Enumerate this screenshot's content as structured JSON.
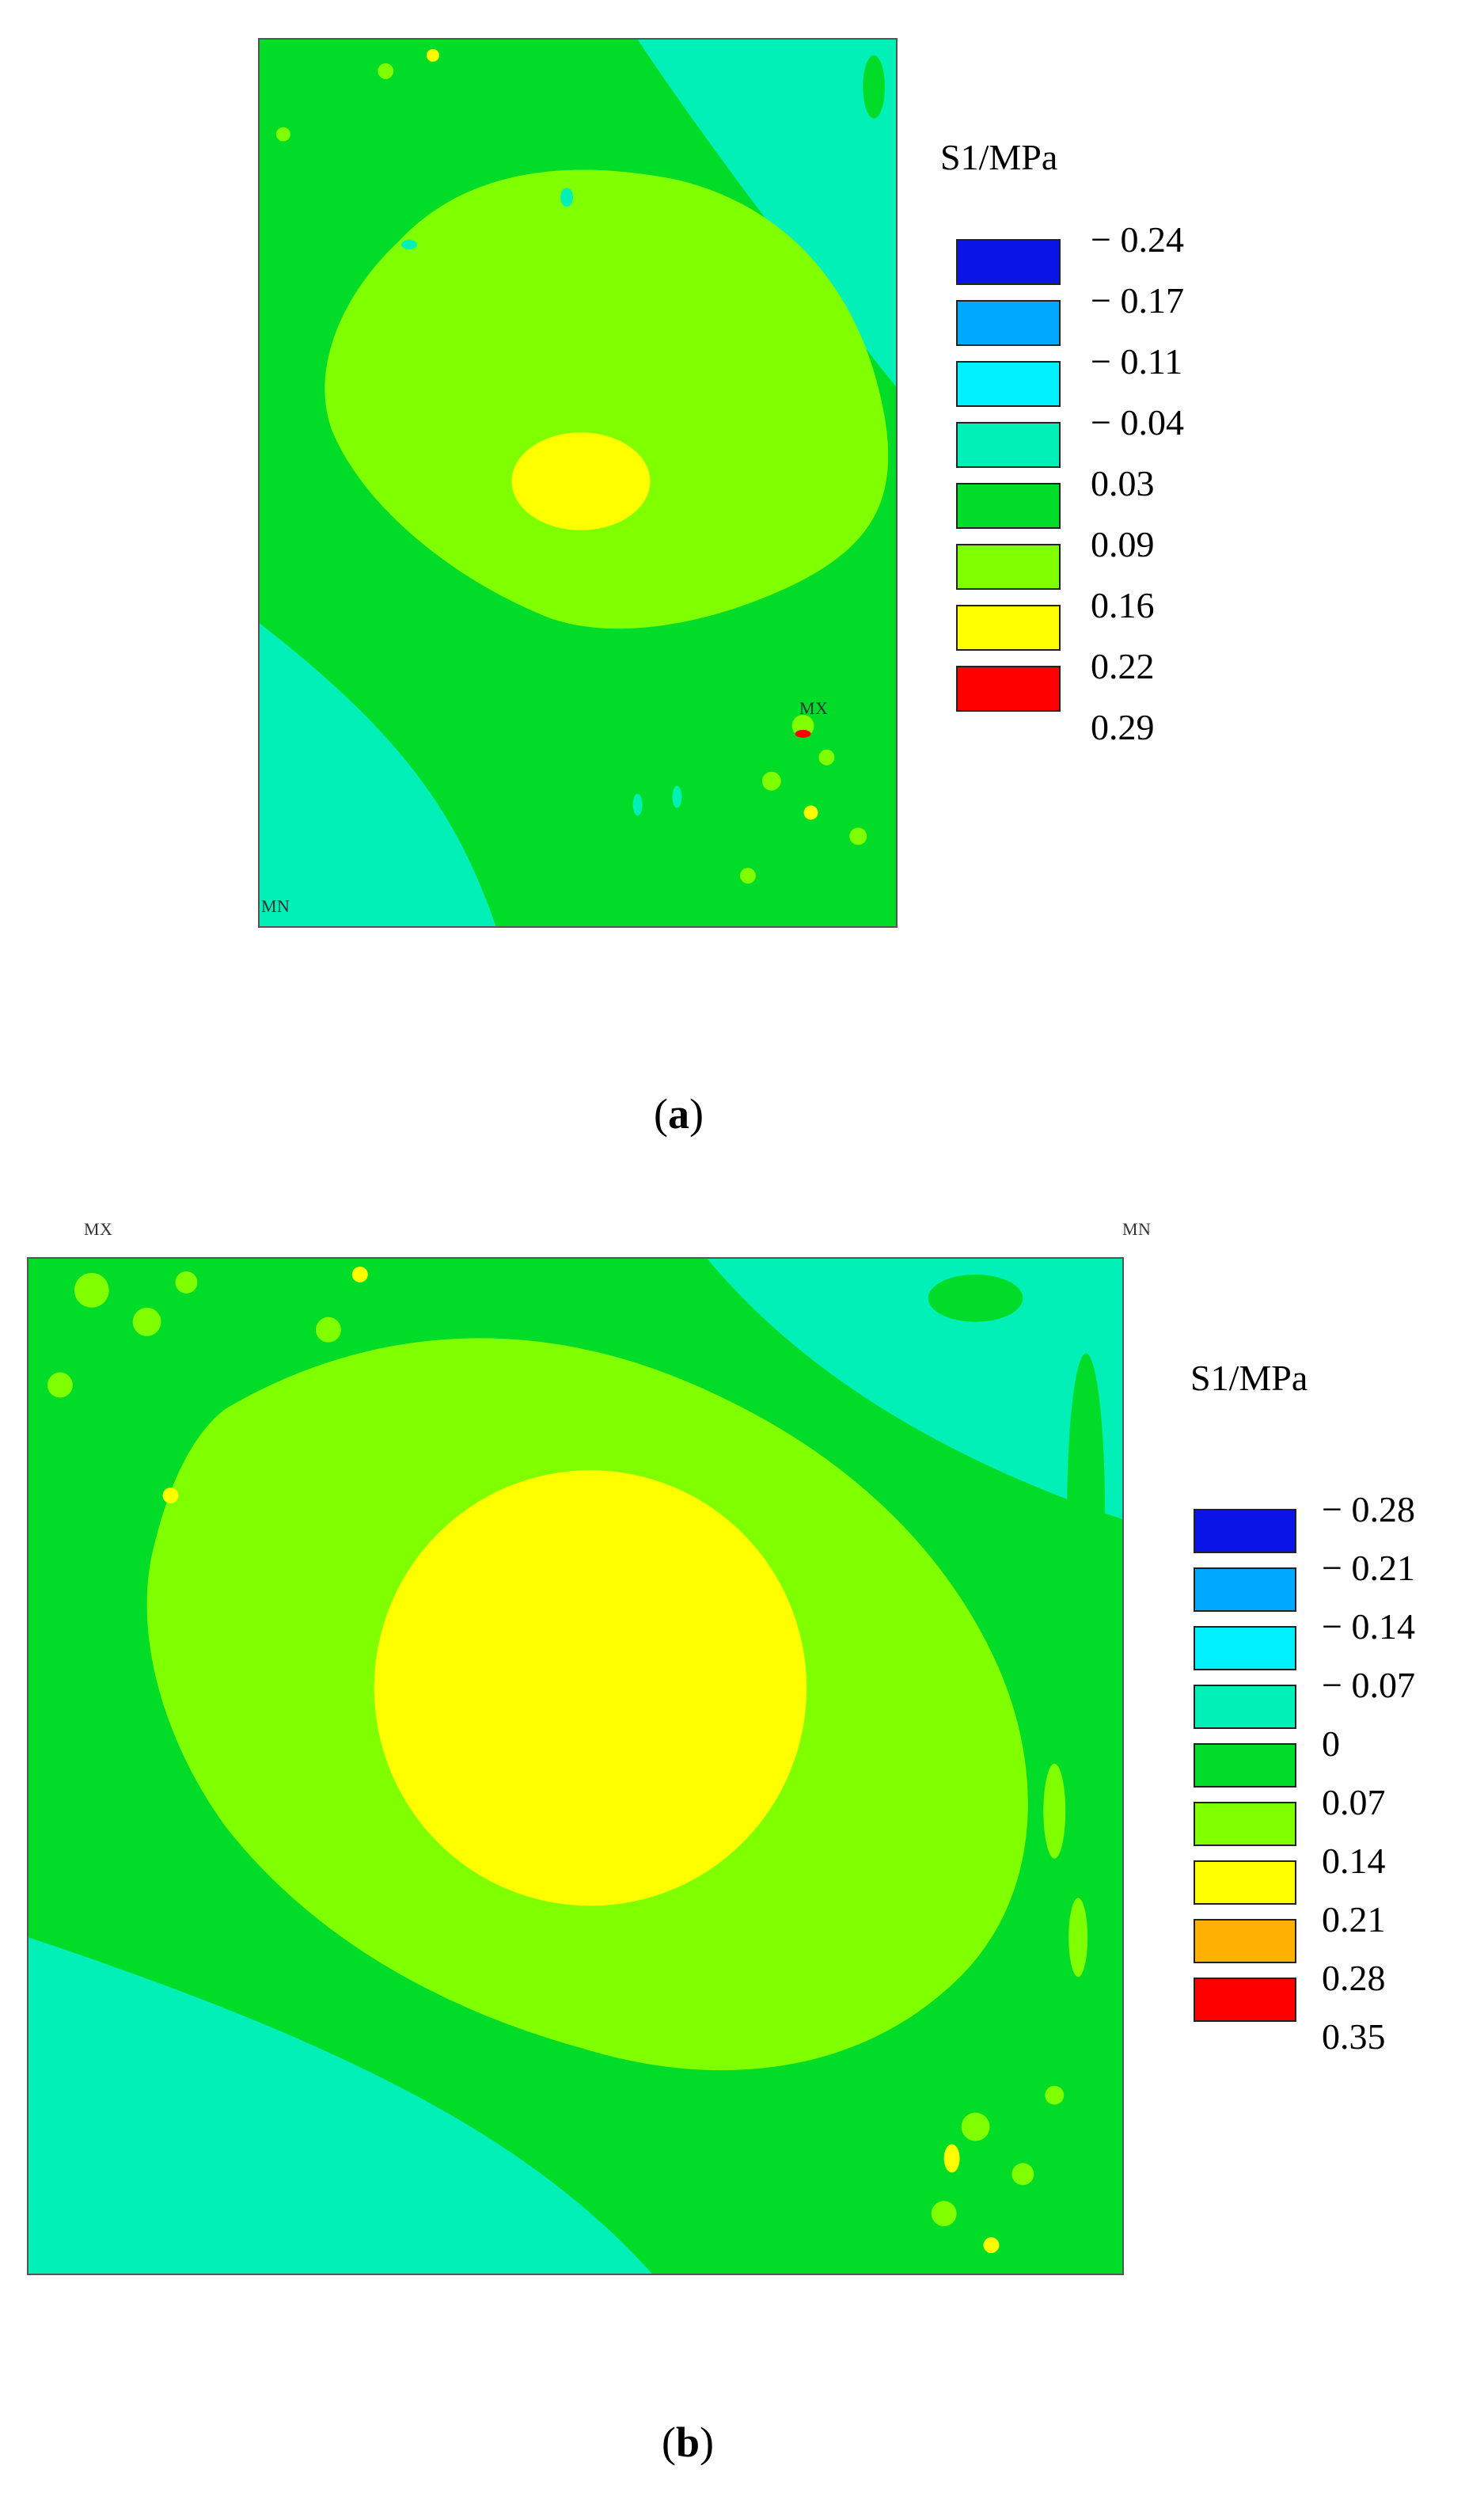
{
  "panel_a": {
    "marker_max": "MX",
    "marker_min": "MN",
    "legend": {
      "title": "S1/MPa",
      "values": [
        "− 0.24",
        "− 0.17",
        "− 0.11",
        "− 0.04",
        "0.03",
        "0.09",
        "0.16",
        "0.22",
        "0.29"
      ],
      "colors": [
        "#0a14e6",
        "#00a8ff",
        "#00f0ff",
        "#00f0b8",
        "#00dc28",
        "#80ff00",
        "#ffff00",
        "#ff0000"
      ]
    },
    "caption_open": "(",
    "caption_letter": "a",
    "caption_close": ")"
  },
  "panel_b": {
    "marker_max": "MX",
    "marker_min": "MN",
    "legend": {
      "title": "S1/MPa",
      "values": [
        "− 0.28",
        "− 0.21",
        "− 0.14",
        "− 0.07",
        "0",
        "0.07",
        "0.14",
        "0.21",
        "0.28",
        "0.35"
      ],
      "colors": [
        "#0a14e6",
        "#00a8ff",
        "#00f0ff",
        "#00f0b8",
        "#00dc28",
        "#80ff00",
        "#ffff00",
        "#ffb000",
        "#ff0000"
      ]
    },
    "caption_open": "(",
    "caption_letter": "b",
    "caption_close": ")"
  },
  "colors": {
    "cyan_green": "#00f0b8",
    "green": "#00dc28",
    "light_green": "#80ff00",
    "yellow": "#ffff00",
    "red": "#ff0000"
  }
}
